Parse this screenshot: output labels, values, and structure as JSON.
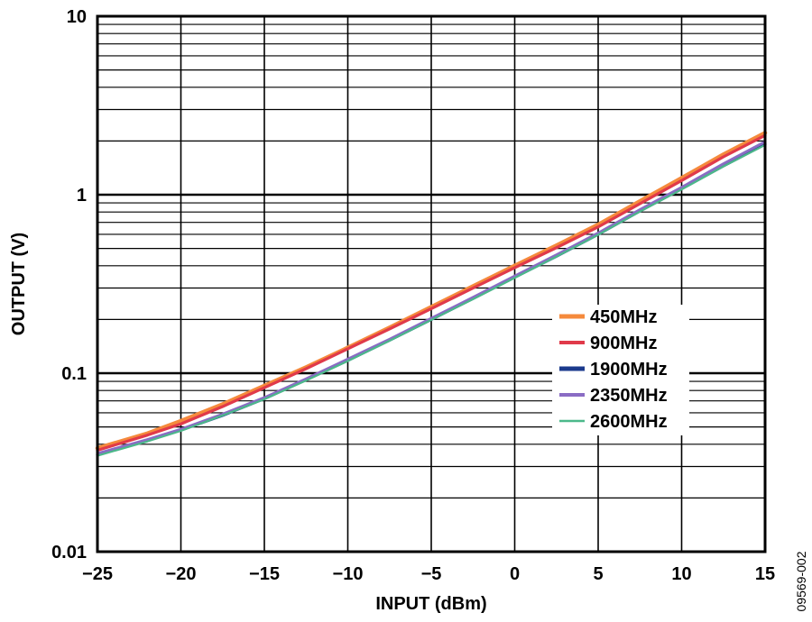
{
  "figure_id": "09569-002",
  "chart_data": {
    "type": "line",
    "xlabel": "INPUT (dBm)",
    "ylabel": "OUTPUT (V)",
    "xlim": [
      -25,
      15
    ],
    "ylim": [
      0.01,
      10
    ],
    "y_scale": "log",
    "grid": true,
    "legend_position": "center-right",
    "x_ticks": [
      -25,
      -20,
      -15,
      -10,
      -5,
      0,
      5,
      10,
      15
    ],
    "x_tick_labels": [
      "−25",
      "−20",
      "−15",
      "−10",
      "−5",
      "0",
      "5",
      "10",
      "15"
    ],
    "y_ticks": [
      0.01,
      0.1,
      1,
      10
    ],
    "y_tick_labels": [
      "0.01",
      "0.1",
      "1",
      "10"
    ],
    "series": [
      {
        "name": "450MHz",
        "color": "#F58A3C",
        "x": [
          -25,
          -22,
          -20,
          -17.5,
          -15,
          -12.5,
          -10,
          -7.5,
          -5,
          -2.5,
          0,
          2.5,
          5,
          7.5,
          10,
          12.5,
          15
        ],
        "y": [
          0.038,
          0.046,
          0.054,
          0.067,
          0.085,
          0.108,
          0.139,
          0.18,
          0.235,
          0.307,
          0.4,
          0.52,
          0.68,
          0.92,
          1.24,
          1.68,
          2.22
        ]
      },
      {
        "name": "900MHz",
        "color": "#E03A4A",
        "x": [
          -25,
          -22,
          -20,
          -17.5,
          -15,
          -12.5,
          -10,
          -7.5,
          -5,
          -2.5,
          0,
          2.5,
          5,
          7.5,
          10,
          12.5,
          15
        ],
        "y": [
          0.037,
          0.045,
          0.052,
          0.065,
          0.083,
          0.106,
          0.137,
          0.177,
          0.23,
          0.3,
          0.39,
          0.505,
          0.66,
          0.89,
          1.2,
          1.63,
          2.15
        ]
      },
      {
        "name": "1900MHz",
        "color": "#1B3A8C",
        "x": [
          -25,
          -22,
          -20,
          -17.5,
          -15,
          -12.5,
          -10,
          -7.5,
          -5,
          -2.5,
          0,
          2.5,
          5,
          7.5,
          10,
          12.5,
          15
        ],
        "y": [
          0.035,
          0.042,
          0.048,
          0.058,
          0.072,
          0.092,
          0.118,
          0.153,
          0.2,
          0.262,
          0.345,
          0.452,
          0.6,
          0.81,
          1.08,
          1.45,
          1.92
        ]
      },
      {
        "name": "2350MHz",
        "color": "#8A6CC4",
        "x": [
          -25,
          -22,
          -20,
          -17.5,
          -15,
          -12.5,
          -10,
          -7.5,
          -5,
          -2.5,
          0,
          2.5,
          5,
          7.5,
          10,
          12.5,
          15
        ],
        "y": [
          0.0355,
          0.0425,
          0.0485,
          0.059,
          0.073,
          0.093,
          0.12,
          0.155,
          0.203,
          0.266,
          0.35,
          0.46,
          0.61,
          0.825,
          1.1,
          1.49,
          1.98
        ]
      },
      {
        "name": "2600MHz",
        "color": "#4CB88A",
        "x": [
          -25,
          -22,
          -20,
          -17.5,
          -15,
          -12.5,
          -10,
          -7.5,
          -5,
          -2.5,
          0,
          2.5,
          5,
          7.5,
          10,
          12.5,
          15
        ],
        "y": [
          0.0345,
          0.0415,
          0.0475,
          0.058,
          0.0715,
          0.091,
          0.117,
          0.152,
          0.199,
          0.26,
          0.342,
          0.45,
          0.597,
          0.805,
          1.07,
          1.44,
          1.9
        ]
      }
    ]
  }
}
